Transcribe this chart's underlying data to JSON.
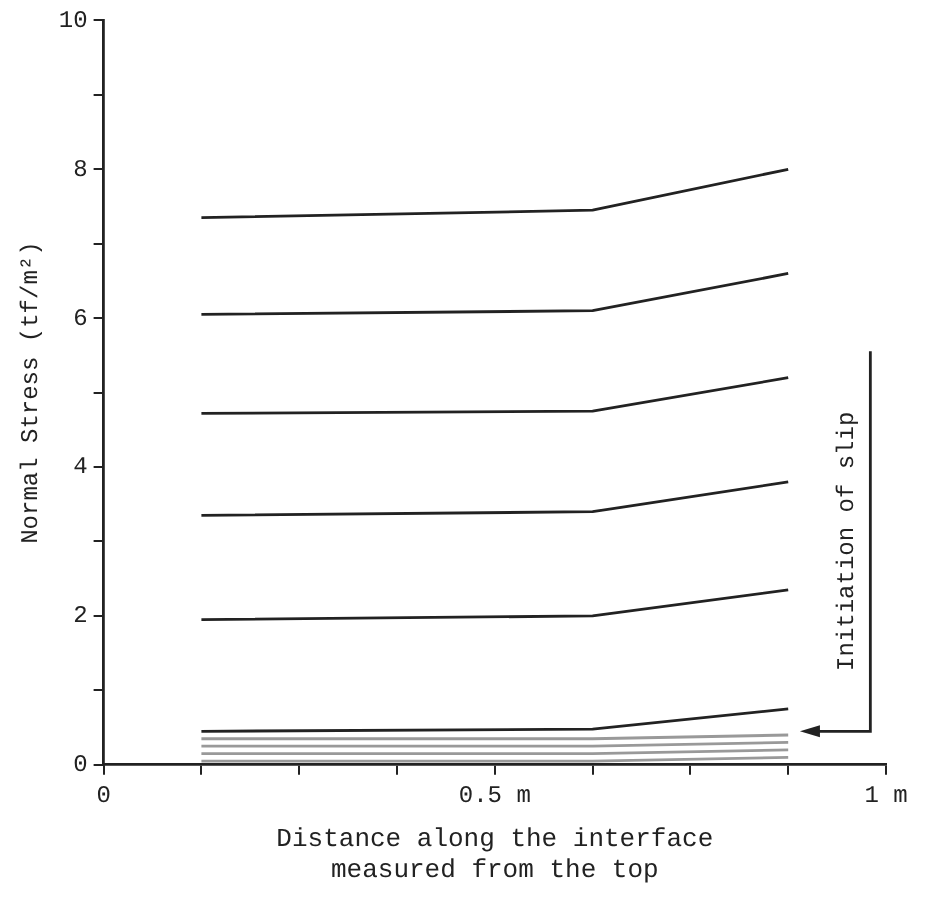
{
  "chart_data": {
    "type": "line",
    "xlabel": "Distance along the interface\nmeasured from the top",
    "ylabel": "Normal Stress (tf/m²)",
    "xlim": [
      0,
      1
    ],
    "xticks": [
      0,
      {
        "value": 0.125,
        "label": null
      },
      {
        "value": 0.25,
        "label": null
      },
      {
        "value": 0.375,
        "label": null
      },
      {
        "value": 0.5,
        "label": "0.5 m"
      },
      {
        "value": 0.625,
        "label": null
      },
      {
        "value": 0.75,
        "label": null
      },
      {
        "value": 0.875,
        "label": null
      },
      {
        "value": 1,
        "label": "1 m"
      }
    ],
    "ylim": [
      0,
      10
    ],
    "yticks": [
      0,
      {
        "value": 1,
        "label": null
      },
      2,
      {
        "value": 3,
        "label": null
      },
      4,
      {
        "value": 5,
        "label": null
      },
      6,
      {
        "value": 7,
        "label": null
      },
      8,
      {
        "value": 9,
        "label": null
      },
      10
    ],
    "grid": false,
    "legend": false,
    "marker": "none",
    "line_style": "solid",
    "series": [
      {
        "color": "#222222",
        "x": [
          0.125,
          0.625,
          0.875
        ],
        "values": [
          7.35,
          7.45,
          8.0
        ]
      },
      {
        "color": "#222222",
        "x": [
          0.125,
          0.625,
          0.875
        ],
        "values": [
          6.05,
          6.1,
          6.6
        ]
      },
      {
        "color": "#222222",
        "x": [
          0.125,
          0.625,
          0.875
        ],
        "values": [
          4.72,
          4.75,
          5.2
        ]
      },
      {
        "color": "#222222",
        "x": [
          0.125,
          0.625,
          0.875
        ],
        "values": [
          3.35,
          3.4,
          3.8
        ]
      },
      {
        "color": "#222222",
        "x": [
          0.125,
          0.625,
          0.875
        ],
        "values": [
          1.95,
          2.0,
          2.35
        ]
      },
      {
        "color": "#222222",
        "x": [
          0.125,
          0.625,
          0.875
        ],
        "values": [
          0.45,
          0.48,
          0.75
        ]
      },
      {
        "color": "#999999",
        "x": [
          0.125,
          0.625,
          0.875
        ],
        "values": [
          0.35,
          0.35,
          0.4
        ]
      },
      {
        "color": "#999999",
        "x": [
          0.125,
          0.625,
          0.875
        ],
        "values": [
          0.25,
          0.25,
          0.3
        ]
      },
      {
        "color": "#999999",
        "x": [
          0.125,
          0.625,
          0.875
        ],
        "values": [
          0.15,
          0.15,
          0.2
        ]
      },
      {
        "color": "#999999",
        "x": [
          0.125,
          0.625,
          0.875
        ],
        "values": [
          0.05,
          0.05,
          0.1
        ]
      }
    ],
    "annotations": [
      "Initiation of slip"
    ]
  }
}
